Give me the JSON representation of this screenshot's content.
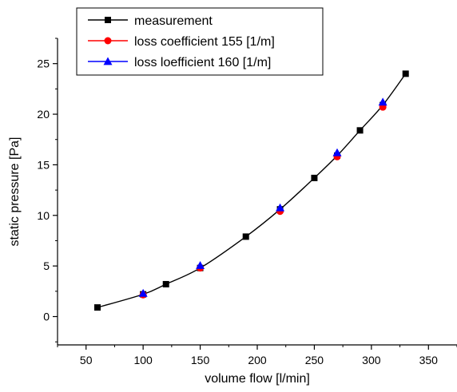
{
  "chart_data": {
    "type": "line",
    "title": "",
    "xlabel": "volume flow [l/min]",
    "ylabel": "static pressure [Pa]",
    "xlim": [
      25,
      375
    ],
    "ylim": [
      -2.8,
      27.5
    ],
    "xticks": [
      50,
      100,
      150,
      200,
      250,
      300,
      350
    ],
    "yticks": [
      0,
      5,
      10,
      15,
      20,
      25
    ],
    "grid": false,
    "legend_position": "top-left",
    "series": [
      {
        "name": "measurement",
        "color": "#000000",
        "marker": "square",
        "line": true,
        "x": [
          60,
          100,
          120,
          150,
          190,
          220,
          250,
          270,
          290,
          310,
          330
        ],
        "y": [
          0.9,
          2.2,
          3.2,
          4.8,
          7.9,
          10.6,
          13.7,
          15.9,
          18.4,
          20.9,
          24.0
        ]
      },
      {
        "name": "loss coefficient 155 [1/m]",
        "color": "#ff0000",
        "marker": "circle",
        "line": false,
        "x": [
          100,
          150,
          220,
          270,
          310
        ],
        "y": [
          2.15,
          4.8,
          10.4,
          15.8,
          20.7
        ]
      },
      {
        "name": "loss loefficient 160 [1/m]",
        "color": "#0000ff",
        "marker": "triangle",
        "line": false,
        "x": [
          100,
          150,
          220,
          270,
          310
        ],
        "y": [
          2.3,
          5.05,
          10.75,
          16.2,
          21.2
        ]
      }
    ]
  }
}
